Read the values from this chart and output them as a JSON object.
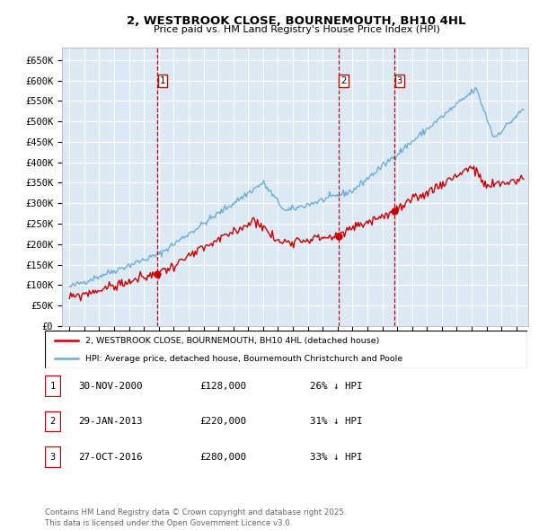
{
  "title": "2, WESTBROOK CLOSE, BOURNEMOUTH, BH10 4HL",
  "subtitle": "Price paid vs. HM Land Registry's House Price Index (HPI)",
  "plot_bg_color": "#dce9f5",
  "ylim": [
    0,
    680000
  ],
  "yticks": [
    0,
    50000,
    100000,
    150000,
    200000,
    250000,
    300000,
    350000,
    400000,
    450000,
    500000,
    550000,
    600000,
    650000
  ],
  "sales": [
    {
      "date_num": 2000.92,
      "price": 128000,
      "label": "1"
    },
    {
      "date_num": 2013.08,
      "price": 220000,
      "label": "2"
    },
    {
      "date_num": 2016.83,
      "price": 280000,
      "label": "3"
    }
  ],
  "sale_vline_color": "#cc0000",
  "sale_marker_color": "#cc0000",
  "hpi_line_color": "#6baed6",
  "price_line_color": "#cc0000",
  "legend_label_price": "2, WESTBROOK CLOSE, BOURNEMOUTH, BH10 4HL (detached house)",
  "legend_label_hpi": "HPI: Average price, detached house, Bournemouth Christchurch and Poole",
  "table_rows": [
    {
      "num": "1",
      "date": "30-NOV-2000",
      "price": "£128,000",
      "pct": "26% ↓ HPI"
    },
    {
      "num": "2",
      "date": "29-JAN-2013",
      "price": "£220,000",
      "pct": "31% ↓ HPI"
    },
    {
      "num": "3",
      "date": "27-OCT-2016",
      "price": "£280,000",
      "pct": "33% ↓ HPI"
    }
  ],
  "footer": "Contains HM Land Registry data © Crown copyright and database right 2025.\nThis data is licensed under the Open Government Licence v3.0."
}
